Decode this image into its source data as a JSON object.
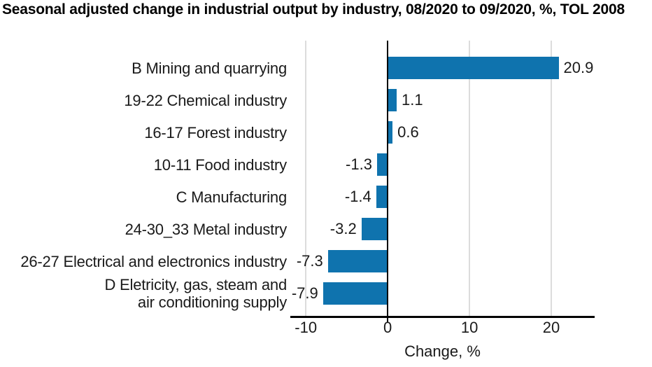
{
  "title": "Seasonal adjusted change in industrial output by industry, 08/2020 to 09/2020, %, TOL 2008",
  "chart_data": {
    "type": "bar",
    "orientation": "horizontal",
    "title": "Seasonal adjusted change in industrial output by industry, 08/2020 to 09/2020, %, TOL 2008",
    "categories": [
      "B Mining and quarrying",
      "19-22 Chemical industry",
      "16-17 Forest industry",
      "10-11 Food industry",
      "C Manufacturing",
      "24-30_33 Metal industry",
      "26-27 Electrical and electronics industry",
      "D Eletricity, gas, steam and\nair conditioning supply"
    ],
    "values": [
      20.9,
      1.1,
      0.6,
      -1.3,
      -1.4,
      -3.2,
      -7.3,
      -7.9
    ],
    "value_labels": [
      "20.9",
      "1.1",
      "0.6",
      "-1.3",
      "-1.4",
      "-3.2",
      "-7.3",
      "-7.9"
    ],
    "xlabel": "Change, %",
    "x_ticks": [
      -10,
      0,
      10,
      20
    ],
    "x_tick_labels": [
      "-10",
      "0",
      "10",
      "20"
    ],
    "xlim": [
      -11.9,
      25.3
    ],
    "grid": "vertical-gridlines",
    "legend": false,
    "colors": {
      "bar": "#0f73ae",
      "gridline": "#dcdcdc",
      "axis": "#000000",
      "text": "#1a1a1a",
      "title": "#000000",
      "background": "#ffffff"
    }
  }
}
